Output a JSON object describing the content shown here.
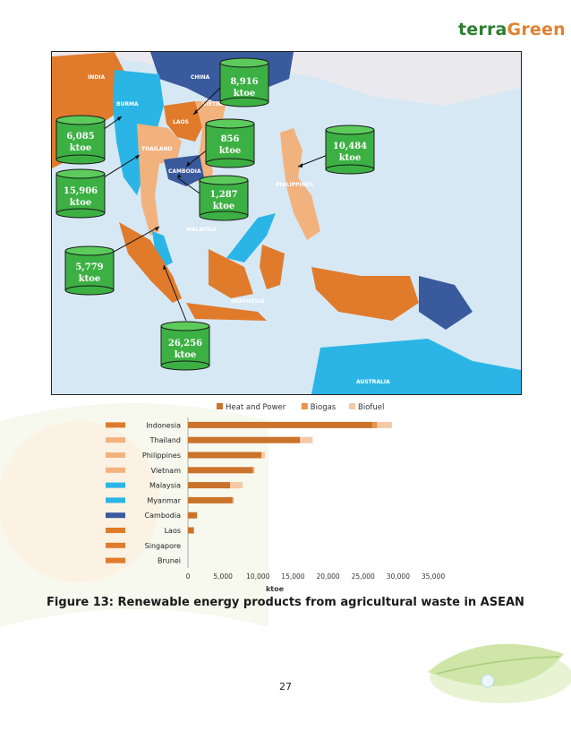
{
  "logo": {
    "text_a": "terra",
    "text_b": "Green"
  },
  "map": {
    "country_labels": [
      "INDIA",
      "CHINA",
      "BURMA",
      "LAOS",
      "VIETNAM",
      "THAILAND",
      "CAMBODIA",
      "PHILIPPINES",
      "MALAYSIA",
      "INDONESIA",
      "AUSTRALIA"
    ],
    "callouts": [
      {
        "value": "8,916",
        "unit": "ktoe"
      },
      {
        "value": "6,085",
        "unit": "ktoe"
      },
      {
        "value": "856",
        "unit": "ktoe"
      },
      {
        "value": "10,484",
        "unit": "ktoe"
      },
      {
        "value": "15,906",
        "unit": "ktoe"
      },
      {
        "value": "1,287",
        "unit": "ktoe"
      },
      {
        "value": "5,779",
        "unit": "ktoe"
      },
      {
        "value": "26,256",
        "unit": "ktoe"
      }
    ],
    "colors": {
      "sea": "#d6e8f4",
      "orange": "#e07b2c",
      "light_orange": "#f2b27e",
      "blue": "#2bb5e6",
      "navy": "#3a5a9e",
      "land_other": "#f0f0f0",
      "callout": "#3cb043"
    }
  },
  "chart_data": {
    "type": "bar",
    "orientation": "horizontal",
    "stacked": true,
    "categories": [
      "Indonesia",
      "Thailand",
      "Philippines",
      "Vietnam",
      "Malaysia",
      "Myanmar",
      "Cambodia",
      "Laos",
      "Singapore",
      "Brunei"
    ],
    "category_swatch_colors": [
      "#e07b2c",
      "#f2b27e",
      "#f2b27e",
      "#f2b27e",
      "#2bb5e6",
      "#2bb5e6",
      "#3a5a9e",
      "#e07b2c",
      "#e07b2c",
      "#e07b2c"
    ],
    "series": [
      {
        "name": "Heat and Power",
        "color": "#c9732b",
        "values": [
          26300,
          16000,
          10500,
          9200,
          6000,
          6300,
          1300,
          850,
          0,
          0
        ]
      },
      {
        "name": "Biogas",
        "color": "#e8944d",
        "values": [
          700,
          0,
          0,
          200,
          0,
          200,
          0,
          0,
          0,
          0
        ]
      },
      {
        "name": "Biofuel",
        "color": "#f5c9a6",
        "values": [
          2100,
          1800,
          500,
          100,
          1800,
          0,
          0,
          0,
          0,
          0
        ]
      }
    ],
    "xlabel": "ktoe",
    "xlim": [
      0,
      35000
    ],
    "xticks": [
      "0",
      "5,000",
      "10,000",
      "15,000",
      "20,000",
      "25,000",
      "30,000",
      "35,000"
    ],
    "legend": "top"
  },
  "caption": "Figure 13: Renewable energy products from agricultural waste in ASEAN",
  "page_number": "27"
}
